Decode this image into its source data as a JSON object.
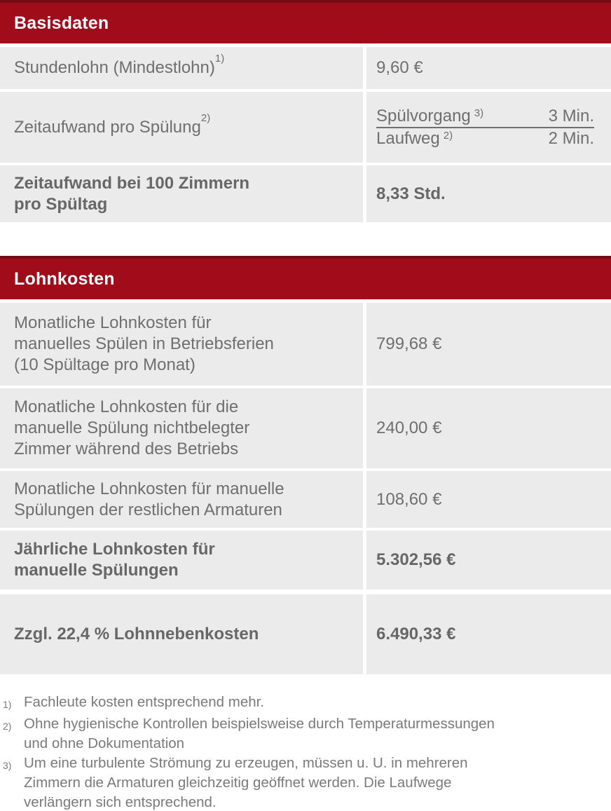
{
  "colors": {
    "accent_red": "#a10c1a",
    "accent_red_dark": "#750c15",
    "cell_background": "#ebebeb",
    "text_gray": "#6f6f6f",
    "header_text": "#ffffff"
  },
  "basisdaten": {
    "title": "Basisdaten",
    "rows": [
      {
        "label": "Stundenlohn (Mindestlohn)",
        "sup": "1)",
        "value": "9,60 €"
      },
      {
        "label": "Zeitaufwand pro Spülung",
        "sup": "2)",
        "sub_rows": [
          {
            "label": "Spülvorgang",
            "sup": "3)",
            "value": "3 Min."
          },
          {
            "label": "Laufweg",
            "sup": "2)",
            "value": "2 Min."
          }
        ]
      },
      {
        "label": "Zeitaufwand bei 100 Zimmern\npro Spültag",
        "value": "8,33 Std."
      }
    ]
  },
  "lohnkosten": {
    "title": "Lohnkosten",
    "rows": [
      {
        "label": "Monatliche Lohnkosten für\nmanuelles Spülen in Betriebsferien\n(10 Spültage pro Monat)",
        "value": "799,68 €"
      },
      {
        "label": "Monatliche Lohnkosten für die\nmanuelle Spülung nichtbelegter\nZimmer während des Betriebs",
        "value": "240,00 €"
      },
      {
        "label": "Monatliche Lohnkosten für manuelle\nSpülungen der restlichen Armaturen",
        "value": "108,60 €"
      },
      {
        "label": "Jährliche Lohnkosten für\nmanuelle Spülungen",
        "value": "5.302,56 €"
      }
    ]
  },
  "summary": {
    "label": "Zzgl. 22,4 % Lohnnebenkosten",
    "value": "6.490,33 €"
  },
  "footnotes": [
    {
      "marker": "1)",
      "text": "Fachleute kosten entsprechend mehr."
    },
    {
      "marker": "2)",
      "text": "Ohne hygienische Kontrollen beispielsweise durch Temperaturmessungen\nund ohne Dokumentation"
    },
    {
      "marker": "3)",
      "text": "Um eine turbulente Strömung zu erzeugen, müssen u. U. in mehreren\nZimmern die Armaturen gleichzeitig geöffnet werden. Die Laufwege\nverlängern sich entsprechend."
    }
  ]
}
